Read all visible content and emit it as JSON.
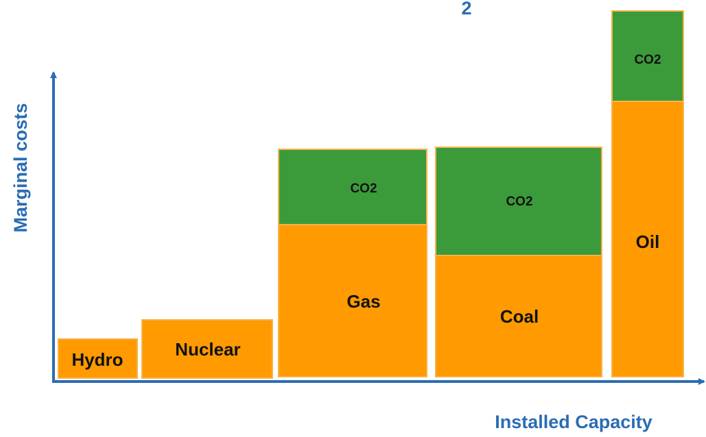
{
  "top_fragment": "2",
  "y_axis_label": "Marginal costs",
  "x_axis_label": "Installed Capacity",
  "blocks": [
    {
      "label": "Hydro"
    },
    {
      "label": "Nuclear"
    },
    {
      "label": "Gas",
      "co2_label": "CO2"
    },
    {
      "label": "Coal",
      "co2_label": "CO2"
    },
    {
      "label": "Oil",
      "co2_label": "CO2"
    }
  ]
}
